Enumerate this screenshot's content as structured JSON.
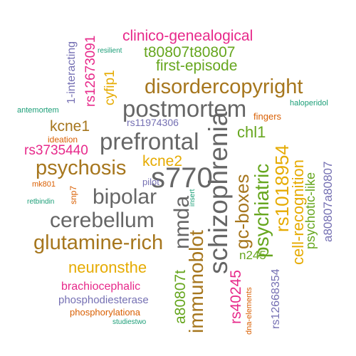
{
  "colors": {
    "gray": "#666666",
    "brown": "#a6761d",
    "green": "#66a61e",
    "pink": "#e7298a",
    "orange": "#d95f02",
    "purple": "#7570b3",
    "teal": "#1b9e77",
    "gold": "#e6ab02"
  },
  "words": [
    "schizophrenia",
    "s770",
    "postmortem",
    "prefrontal",
    "disordercopyright",
    "bipolar",
    "cerebellum",
    "glutamine-rich",
    "psychosis",
    "nmda",
    "immunoblot",
    "gc-boxes",
    "psychiatric",
    "rs1018954",
    "cell-recognition",
    "psychotic-like",
    "a80807a80807",
    "clinico-genealogical",
    "t80807t80807",
    "first-episode",
    "neuronsthe",
    "kcne1",
    "kcne2",
    "chl1",
    "rs3735440",
    "a80807t",
    "rs40245",
    "brachiocephalic",
    "phosphodiesterase",
    "phosphorylationa",
    "rs12673091",
    "cyfip1",
    "1-interacting",
    "rs11974306",
    "rs12668354",
    "n245",
    "pilot",
    "snp7",
    "fingers",
    "haloperidol",
    "antemortem",
    "resilient",
    "ideation",
    "mk801",
    "retbindin",
    "insert",
    "dna-elements",
    "studiestwo"
  ]
}
